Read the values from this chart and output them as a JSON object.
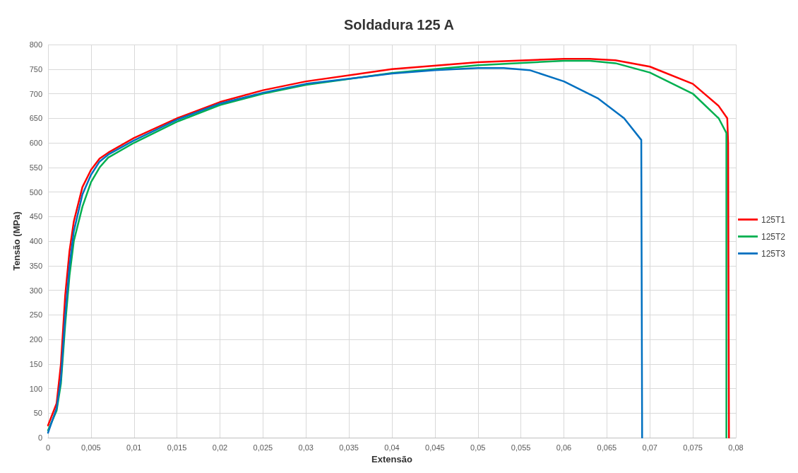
{
  "chart_data": {
    "type": "line",
    "title": "Soldadura 125 A",
    "xlabel": "Extensão",
    "ylabel": "Tensão (MPa)",
    "xlim": [
      0,
      0.08
    ],
    "xticks": [
      0,
      {
        "value": 0.005,
        "label": "0,005"
      },
      {
        "value": 0.01,
        "label": "0,01"
      },
      {
        "value": 0.015,
        "label": "0,015"
      },
      {
        "value": 0.02,
        "label": "0,02"
      },
      {
        "value": 0.025,
        "label": "0,025"
      },
      {
        "value": 0.03,
        "label": "0,03"
      },
      {
        "value": 0.035,
        "label": "0,035"
      },
      {
        "value": 0.04,
        "label": "0,04"
      },
      {
        "value": 0.045,
        "label": "0,045"
      },
      {
        "value": 0.05,
        "label": "0,05"
      },
      {
        "value": 0.055,
        "label": "0,055"
      },
      {
        "value": 0.06,
        "label": "0,06"
      },
      {
        "value": 0.065,
        "label": "0,065"
      },
      {
        "value": 0.07,
        "label": "0,07"
      },
      {
        "value": 0.075,
        "label": "0,075"
      },
      {
        "value": 0.08,
        "label": "0,08"
      }
    ],
    "ylim": [
      0,
      800
    ],
    "yticks": [
      0,
      50,
      100,
      150,
      200,
      250,
      300,
      350,
      400,
      450,
      500,
      550,
      600,
      650,
      700,
      750,
      800
    ],
    "grid": true,
    "legend": "right",
    "marker": "none",
    "line_style": "solid",
    "series": [
      {
        "name": "125T1",
        "color": "#ff0000",
        "x": [
          0,
          0.001,
          0.0015,
          0.002,
          0.0025,
          0.003,
          0.004,
          0.005,
          0.006,
          0.007,
          0.01,
          0.015,
          0.02,
          0.025,
          0.03,
          0.04,
          0.05,
          0.06,
          0.063,
          0.066,
          0.07,
          0.075,
          0.078,
          0.079,
          0.0791,
          0.0792
        ],
        "values": [
          25,
          70,
          150,
          290,
          380,
          440,
          510,
          545,
          568,
          580,
          610,
          650,
          683,
          707,
          725,
          750,
          764,
          771,
          771,
          768,
          755,
          720,
          675,
          650,
          600,
          0
        ]
      },
      {
        "name": "125T2",
        "color": "#00b050",
        "x": [
          0,
          0.001,
          0.0015,
          0.002,
          0.0025,
          0.003,
          0.004,
          0.005,
          0.006,
          0.007,
          0.01,
          0.015,
          0.02,
          0.025,
          0.03,
          0.04,
          0.05,
          0.06,
          0.063,
          0.066,
          0.07,
          0.075,
          0.078,
          0.0789,
          0.0789
        ],
        "values": [
          15,
          55,
          110,
          230,
          330,
          400,
          470,
          520,
          550,
          570,
          600,
          643,
          677,
          700,
          718,
          742,
          758,
          767,
          767,
          762,
          743,
          700,
          650,
          620,
          0
        ]
      },
      {
        "name": "125T3",
        "color": "#0070c0",
        "x": [
          0,
          0.001,
          0.0015,
          0.002,
          0.0025,
          0.003,
          0.004,
          0.005,
          0.006,
          0.007,
          0.01,
          0.015,
          0.02,
          0.025,
          0.03,
          0.04,
          0.045,
          0.05,
          0.053,
          0.056,
          0.06,
          0.064,
          0.067,
          0.069,
          0.0691
        ],
        "values": [
          10,
          60,
          120,
          250,
          350,
          420,
          495,
          535,
          562,
          576,
          605,
          647,
          680,
          702,
          720,
          741,
          748,
          752,
          752,
          748,
          725,
          690,
          650,
          606,
          0
        ]
      }
    ]
  }
}
